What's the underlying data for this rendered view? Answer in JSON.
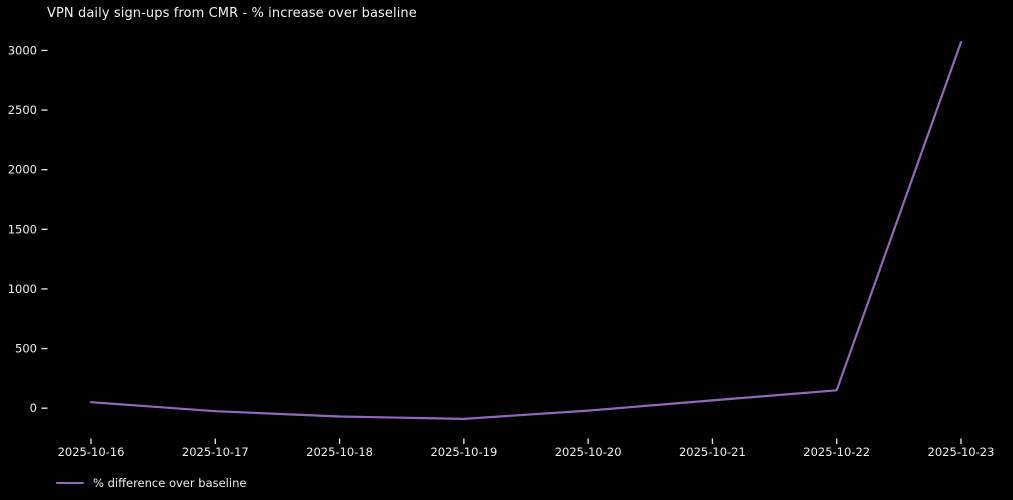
{
  "page": {
    "background": "#000000",
    "text_color": "#eeeeee"
  },
  "legend": {
    "label": "% difference over baseline",
    "swatch_color": "#9467bd"
  },
  "chart_data": {
    "type": "line",
    "title": "VPN daily sign-ups from CMR - % increase over baseline",
    "x": [
      "2025-10-16",
      "2025-10-17",
      "2025-10-18",
      "2025-10-19",
      "2025-10-20",
      "2025-10-21",
      "2025-10-22",
      "2025-10-23"
    ],
    "series": [
      {
        "name": "% difference over baseline",
        "color": "#9467bd",
        "values": [
          50,
          -25,
          -70,
          -90,
          -20,
          65,
          150,
          3070
        ]
      }
    ],
    "xlabel": "",
    "ylabel": "",
    "ylim": [
      -250,
      3230
    ],
    "yticks": [
      0,
      500,
      1000,
      1500,
      2000,
      2500,
      3000
    ],
    "grid": false,
    "legend_position": "lower-left-outside",
    "background": "#000000",
    "text_color": "#eeeeee",
    "tick_color": "#eeeeee"
  }
}
